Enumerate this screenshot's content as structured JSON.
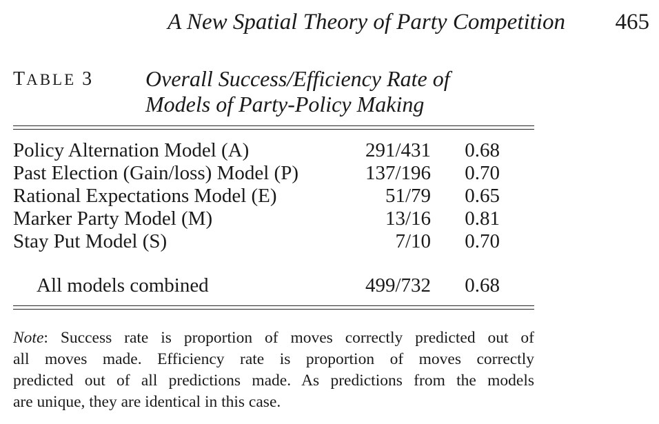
{
  "running_head": {
    "title": "A New Spatial Theory of Party Competition",
    "page_number": "465"
  },
  "table": {
    "label_first": "T",
    "label_rest": "ABLE",
    "label_number": "3",
    "title_line1": "Overall Success/Efficiency Rate of",
    "title_line2": "Models of Party-Policy Making",
    "rows": [
      {
        "model": "Policy Alternation Model (A)",
        "ratio": "291/431",
        "rate": "0.68"
      },
      {
        "model": "Past Election (Gain/loss) Model (P)",
        "ratio": "137/196",
        "rate": "0.70"
      },
      {
        "model": "Rational Expectations Model (E)",
        "ratio": "51/79",
        "rate": "0.65"
      },
      {
        "model": "Marker Party Model (M)",
        "ratio": "13/16",
        "rate": "0.81"
      },
      {
        "model": "Stay Put Model (S)",
        "ratio": "7/10",
        "rate": "0.70"
      }
    ],
    "total": {
      "model": "All models combined",
      "ratio": "499/732",
      "rate": "0.68"
    }
  },
  "note": {
    "label": "Note",
    "line1": ": Success rate is proportion of moves correctly predicted out of",
    "line2": "all moves made. Efficiency rate is proportion of moves correctly",
    "line3": "predicted out of all predictions made. As predictions from the models",
    "line4": "are unique, they are identical in this case."
  }
}
